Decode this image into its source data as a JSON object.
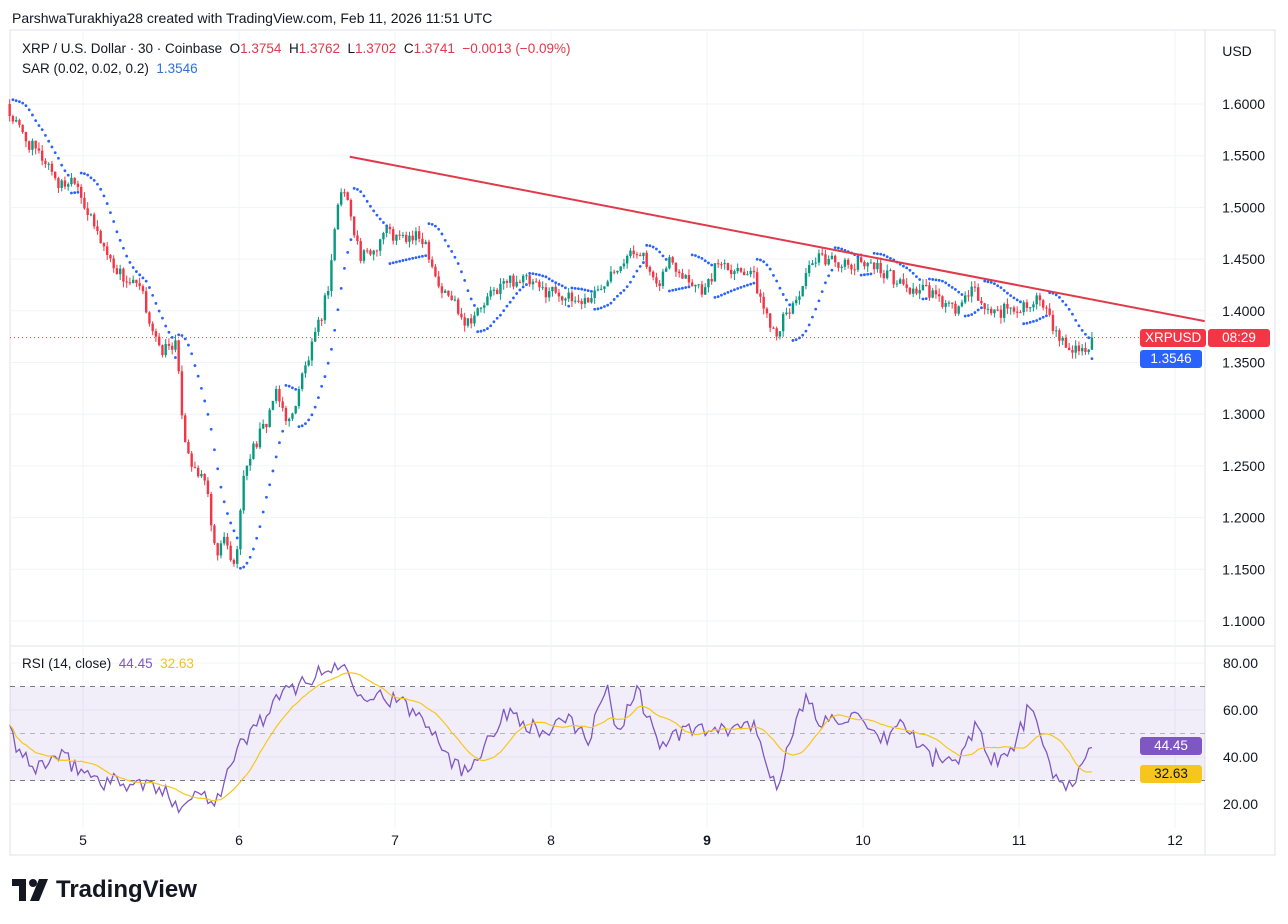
{
  "credit": "ParshwaTurakhiya28 created with TradingView.com, Feb 11, 2026 11:51 UTC",
  "legend": {
    "symbol": "XRP / U.S. Dollar · 30 · Coinbase",
    "o_label": "O",
    "o": "1.3754",
    "h_label": "H",
    "h": "1.3762",
    "l_label": "L",
    "l": "1.3702",
    "c_label": "C",
    "c": "1.3741",
    "change": "−0.0013 (−0.09%)",
    "sar_label": "SAR (0.02, 0.02, 0.2)",
    "sar_value": "1.3546",
    "rsi_label": "RSI (14, close)",
    "rsi_value": "44.45",
    "rsi_ma_value": "32.63"
  },
  "axis": {
    "currency": "USD",
    "price_ticks": [
      "1.6000",
      "1.5500",
      "1.5000",
      "1.4500",
      "1.4000",
      "1.3500",
      "1.3000",
      "1.2500",
      "1.2000",
      "1.1500",
      "1.1000"
    ],
    "rsi_ticks": [
      "80.00",
      "60.00",
      "40.00",
      "20.00"
    ],
    "date_ticks": [
      "5",
      "6",
      "7",
      "8",
      "9",
      "10",
      "11",
      "12"
    ],
    "bold_date": "9"
  },
  "tags": {
    "symbol": "XRPUSD",
    "countdown": "08:29",
    "sar": "1.3546",
    "rsi": "44.45",
    "rsi_ma": "32.63"
  },
  "colors": {
    "up": "#089981",
    "down": "#f23645",
    "sar": "#2962ff",
    "rsi": "#7e57c2",
    "rsi_ma": "#f7c61d",
    "trend": "#e0394a"
  },
  "brand": "TradingView",
  "chart_data": {
    "type": "candlestick",
    "interval_minutes": 30,
    "x_range_days": [
      4.53,
      12.3
    ],
    "price_range": [
      1.08,
      1.63
    ],
    "last_close": 1.3741,
    "close_path": [
      [
        4.53,
        1.59
      ],
      [
        4.66,
        1.56
      ],
      [
        4.79,
        1.54
      ],
      [
        4.85,
        1.52
      ],
      [
        4.95,
        1.53
      ],
      [
        5.04,
        1.49
      ],
      [
        5.11,
        1.47
      ],
      [
        5.17,
        1.45
      ],
      [
        5.27,
        1.43
      ],
      [
        5.37,
        1.42
      ],
      [
        5.43,
        1.39
      ],
      [
        5.49,
        1.36
      ],
      [
        5.59,
        1.37
      ],
      [
        5.65,
        1.28
      ],
      [
        5.72,
        1.24
      ],
      [
        5.78,
        1.24
      ],
      [
        5.85,
        1.16
      ],
      [
        5.91,
        1.18
      ],
      [
        5.97,
        1.15
      ],
      [
        6.04,
        1.25
      ],
      [
        6.1,
        1.27
      ],
      [
        6.17,
        1.29
      ],
      [
        6.23,
        1.32
      ],
      [
        6.33,
        1.29
      ],
      [
        6.39,
        1.33
      ],
      [
        6.46,
        1.36
      ],
      [
        6.52,
        1.39
      ],
      [
        6.58,
        1.43
      ],
      [
        6.62,
        1.49
      ],
      [
        6.66,
        1.52
      ],
      [
        6.71,
        1.5
      ],
      [
        6.78,
        1.45
      ],
      [
        6.87,
        1.46
      ],
      [
        6.94,
        1.48
      ],
      [
        7.0,
        1.47
      ],
      [
        7.1,
        1.47
      ],
      [
        7.19,
        1.47
      ],
      [
        7.29,
        1.42
      ],
      [
        7.38,
        1.41
      ],
      [
        7.45,
        1.39
      ],
      [
        7.54,
        1.4
      ],
      [
        7.64,
        1.42
      ],
      [
        7.74,
        1.43
      ],
      [
        7.83,
        1.43
      ],
      [
        7.93,
        1.42
      ],
      [
        8.03,
        1.42
      ],
      [
        8.12,
        1.41
      ],
      [
        8.22,
        1.41
      ],
      [
        8.31,
        1.42
      ],
      [
        8.38,
        1.44
      ],
      [
        8.47,
        1.45
      ],
      [
        8.57,
        1.46
      ],
      [
        8.67,
        1.42
      ],
      [
        8.76,
        1.45
      ],
      [
        8.89,
        1.43
      ],
      [
        8.99,
        1.42
      ],
      [
        9.08,
        1.45
      ],
      [
        9.18,
        1.44
      ],
      [
        9.28,
        1.44
      ],
      [
        9.37,
        1.4
      ],
      [
        9.44,
        1.38
      ],
      [
        9.53,
        1.4
      ],
      [
        9.6,
        1.42
      ],
      [
        9.66,
        1.44
      ],
      [
        9.72,
        1.45
      ],
      [
        9.82,
        1.45
      ],
      [
        9.92,
        1.44
      ],
      [
        10.01,
        1.45
      ],
      [
        10.11,
        1.44
      ],
      [
        10.21,
        1.43
      ],
      [
        10.3,
        1.42
      ],
      [
        10.4,
        1.42
      ],
      [
        10.49,
        1.41
      ],
      [
        10.59,
        1.4
      ],
      [
        10.65,
        1.41
      ],
      [
        10.72,
        1.42
      ],
      [
        10.78,
        1.4
      ],
      [
        10.88,
        1.4
      ],
      [
        10.97,
        1.4
      ],
      [
        11.07,
        1.41
      ],
      [
        11.13,
        1.41
      ],
      [
        11.2,
        1.39
      ],
      [
        11.26,
        1.37
      ],
      [
        11.33,
        1.365
      ],
      [
        11.42,
        1.36
      ],
      [
        11.47,
        1.3741
      ]
    ],
    "sar_params": [
      0.02,
      0.02,
      0.2
    ],
    "trendline": [
      [
        6.71,
        1.549
      ],
      [
        12.19,
        1.39
      ]
    ],
    "rsi": {
      "period": 14,
      "levels": [
        70,
        50,
        30
      ],
      "range": [
        15,
        85
      ],
      "path": [
        [
          4.53,
          50
        ],
        [
          4.66,
          35
        ],
        [
          4.85,
          40
        ],
        [
          5.11,
          30
        ],
        [
          5.43,
          28
        ],
        [
          5.62,
          20
        ],
        [
          5.75,
          25
        ],
        [
          5.85,
          22
        ],
        [
          6.01,
          45
        ],
        [
          6.13,
          55
        ],
        [
          6.26,
          65
        ],
        [
          6.39,
          72
        ],
        [
          6.52,
          75
        ],
        [
          6.65,
          80
        ],
        [
          6.78,
          68
        ],
        [
          6.97,
          65
        ],
        [
          7.1,
          60
        ],
        [
          7.22,
          55
        ],
        [
          7.35,
          40
        ],
        [
          7.45,
          33
        ],
        [
          7.61,
          50
        ],
        [
          7.74,
          60
        ],
        [
          7.93,
          50
        ],
        [
          8.12,
          55
        ],
        [
          8.25,
          48
        ],
        [
          8.35,
          70
        ],
        [
          8.44,
          50
        ],
        [
          8.54,
          70
        ],
        [
          8.7,
          45
        ],
        [
          8.89,
          52
        ],
        [
          9.08,
          50
        ],
        [
          9.28,
          55
        ],
        [
          9.4,
          35
        ],
        [
          9.44,
          28
        ],
        [
          9.53,
          45
        ],
        [
          9.63,
          65
        ],
        [
          9.72,
          55
        ],
        [
          9.92,
          58
        ],
        [
          10.11,
          45
        ],
        [
          10.24,
          55
        ],
        [
          10.43,
          40
        ],
        [
          10.62,
          38
        ],
        [
          10.72,
          55
        ],
        [
          10.81,
          40
        ],
        [
          10.94,
          40
        ],
        [
          11.07,
          62
        ],
        [
          11.17,
          40
        ],
        [
          11.26,
          28
        ],
        [
          11.39,
          32
        ],
        [
          11.47,
          44.45
        ]
      ]
    }
  }
}
